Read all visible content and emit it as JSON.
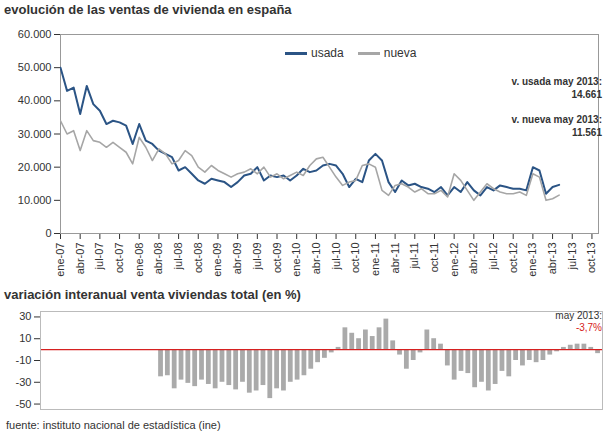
{
  "chart_data": [
    {
      "type": "line",
      "title": "evolución de las ventas de vivienda en españa",
      "categories": [
        "ene-07",
        null,
        null,
        "abr-07",
        null,
        null,
        "jul-07",
        null,
        null,
        "oct-07",
        null,
        null,
        "ene-08",
        null,
        null,
        "abr-08",
        null,
        null,
        "jul-08",
        null,
        null,
        "oct-08",
        null,
        null,
        "ene-09",
        null,
        null,
        "abr-09",
        null,
        null,
        "jul-09",
        null,
        null,
        "oct-09",
        null,
        null,
        "ene-10",
        null,
        null,
        "abr-10",
        null,
        null,
        "jul-10",
        null,
        null,
        "oct-10",
        null,
        null,
        "ene-11",
        null,
        null,
        "abr-11",
        null,
        null,
        "jul-11",
        null,
        null,
        "oct-11",
        null,
        null,
        "ene-12",
        null,
        null,
        "abr-12",
        null,
        null,
        "jul-12",
        null,
        null,
        "oct-12",
        null,
        null,
        "ene-13",
        null,
        null,
        "abr-13",
        null,
        null,
        "jul-13",
        null,
        null,
        "oct-13",
        null
      ],
      "series": [
        {
          "name": "usada",
          "color": "#2b5485",
          "values": [
            50000,
            43000,
            44000,
            36000,
            44500,
            39000,
            37000,
            33000,
            34000,
            33500,
            32500,
            27000,
            33000,
            28000,
            27000,
            25000,
            24000,
            23000,
            19000,
            20000,
            18000,
            16000,
            15000,
            16500,
            16000,
            15500,
            14000,
            15500,
            17500,
            18000,
            20000,
            16000,
            17500,
            17000,
            17500,
            16000,
            17500,
            19500,
            18500,
            19000,
            20500,
            21000,
            20500,
            18000,
            14000,
            16500,
            15500,
            22000,
            24000,
            22000,
            15500,
            12500,
            16000,
            14500,
            15000,
            14000,
            13500,
            12500,
            14000,
            11500,
            14000,
            12500,
            15500,
            13000,
            11500,
            14000,
            13000,
            14500,
            14000,
            13500,
            13500,
            13000,
            20000,
            19000,
            12000,
            14000,
            14661,
            null,
            null,
            null,
            null,
            null,
            null
          ]
        },
        {
          "name": "nueva",
          "color": "#a6a6a6",
          "values": [
            34000,
            30000,
            31000,
            25000,
            31000,
            28000,
            27500,
            26000,
            27500,
            26000,
            24500,
            21000,
            29000,
            26000,
            22000,
            25500,
            24000,
            21000,
            22000,
            25000,
            23500,
            20000,
            18500,
            20500,
            19000,
            18000,
            17000,
            18000,
            18500,
            19500,
            18000,
            20000,
            17000,
            18000,
            16500,
            17500,
            18500,
            17500,
            20500,
            22500,
            23000,
            20000,
            17000,
            14500,
            15500,
            16000,
            20500,
            21000,
            20000,
            13000,
            11500,
            14500,
            15000,
            14000,
            12500,
            13500,
            12000,
            12000,
            13000,
            11000,
            18000,
            16000,
            13000,
            10000,
            12500,
            15000,
            13500,
            12500,
            12000,
            12000,
            12500,
            11500,
            18000,
            17000,
            10000,
            10500,
            11561,
            null,
            null,
            null,
            null,
            null,
            null
          ]
        }
      ],
      "ylim": [
        0,
        60000
      ],
      "yticks": [
        0,
        {
          "value": 10000,
          "label": "10.000"
        },
        {
          "value": 20000,
          "label": "20.000"
        },
        {
          "value": 30000,
          "label": "30.000"
        },
        {
          "value": 40000,
          "label": "40.000"
        },
        {
          "value": 50000,
          "label": "50.000"
        },
        {
          "value": 60000,
          "label": "60.000"
        }
      ],
      "grid": false,
      "legend": "top",
      "annotations": [
        {
          "text": "v. usada may 2013:"
        },
        {
          "text": "14.661"
        },
        {
          "text": "v. nueva may 2013:"
        },
        {
          "text": "11.561"
        }
      ]
    },
    {
      "type": "bar",
      "title": "variación interanual venta viviendas total (en %)",
      "categories": [
        null,
        null,
        null,
        null,
        null,
        null,
        null,
        null,
        null,
        null,
        null,
        null,
        null,
        null,
        null,
        null,
        null,
        null,
        null,
        null,
        null,
        null,
        null,
        null,
        null,
        null,
        null,
        null,
        null,
        null,
        null,
        null,
        null,
        null,
        null,
        null,
        null,
        null,
        null,
        null,
        null,
        null,
        null,
        null,
        null,
        null,
        null,
        null,
        null,
        null,
        null,
        null,
        null,
        null,
        null,
        null,
        null,
        null,
        null,
        null,
        null,
        null,
        null,
        null,
        null,
        null,
        null,
        null,
        null,
        null,
        null,
        null,
        null,
        null,
        null,
        null,
        null,
        null,
        null,
        null,
        null,
        null
      ],
      "values": [
        null,
        null,
        null,
        null,
        null,
        null,
        null,
        null,
        null,
        null,
        null,
        null,
        null,
        null,
        null,
        null,
        null,
        -25,
        -24,
        -36,
        -28,
        -31,
        -34,
        -28,
        -32,
        -36,
        -30,
        -33,
        -37,
        -30,
        -40,
        -38,
        -33,
        -45,
        -36,
        -38,
        -30,
        -28,
        -24,
        -18,
        -12,
        -8,
        -3,
        2,
        20,
        15,
        10,
        18,
        12,
        20,
        28,
        8,
        -5,
        -18,
        -10,
        -3,
        18,
        10,
        5,
        -15,
        -28,
        -20,
        -22,
        -35,
        -30,
        -38,
        -32,
        -20,
        -25,
        -10,
        -15,
        -10,
        -12,
        -10,
        -5,
        -2,
        2,
        4,
        5,
        5,
        2,
        -3.7
      ],
      "color": "#aaaaaa",
      "ylim": [
        -55,
        35
      ],
      "yticks": [
        -50,
        -30,
        -10,
        10,
        30
      ],
      "grid": false,
      "tick_labels": "y",
      "annotations": [
        {
          "text": "may 2013:"
        },
        {
          "text": "-3,7%"
        }
      ],
      "caption": "fuente: instituto nacional de estadística (ine)"
    }
  ]
}
